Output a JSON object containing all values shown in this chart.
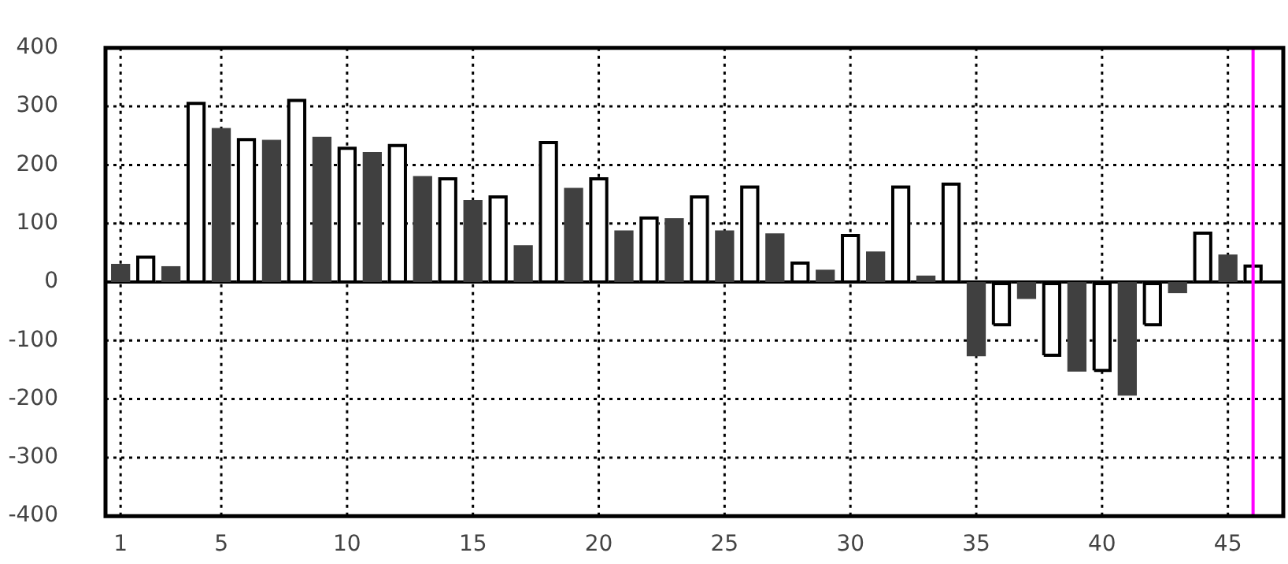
{
  "chart_data": {
    "type": "bar",
    "x": [
      1,
      2,
      3,
      4,
      5,
      6,
      7,
      8,
      9,
      10,
      11,
      12,
      13,
      14,
      15,
      16,
      17,
      18,
      19,
      20,
      21,
      22,
      23,
      24,
      25,
      26,
      27,
      28,
      29,
      30,
      31,
      32,
      33,
      34,
      35,
      36,
      37,
      38,
      39,
      40,
      41,
      42,
      43,
      44,
      45,
      46
    ],
    "values": [
      31,
      45,
      27,
      308,
      263,
      246,
      243,
      313,
      248,
      231,
      222,
      236,
      181,
      179,
      140,
      148,
      63,
      241,
      161,
      179,
      88,
      112,
      109,
      148,
      88,
      165,
      83,
      35,
      21,
      82,
      52,
      165,
      11,
      170,
      -127,
      -73,
      -29,
      -125,
      -153,
      -151,
      -194,
      -73,
      -19,
      86,
      47,
      30
    ],
    "colors": [
      "#404040",
      "#ffffff",
      "#404040",
      "#ffffff",
      "#404040",
      "#ffffff",
      "#404040",
      "#ffffff",
      "#404040",
      "#ffffff",
      "#404040",
      "#ffffff",
      "#404040",
      "#ffffff",
      "#404040",
      "#ffffff",
      "#404040",
      "#ffffff",
      "#404040",
      "#ffffff",
      "#404040",
      "#ffffff",
      "#404040",
      "#ffffff",
      "#404040",
      "#ffffff",
      "#404040",
      "#ffffff",
      "#404040",
      "#ffffff",
      "#404040",
      "#ffffff",
      "#404040",
      "#ffffff",
      "#404040",
      "#ffffff",
      "#404040",
      "#ffffff",
      "#404040",
      "#ffffff",
      "#404040",
      "#ffffff",
      "#404040",
      "#ffffff",
      "#404040",
      "#ffffff"
    ],
    "xlim": [
      0.4,
      47.2
    ],
    "xticks": [
      1,
      5,
      10,
      15,
      20,
      25,
      30,
      35,
      40,
      45
    ],
    "ylim": [
      -400,
      400
    ],
    "yticks": [
      -400,
      -300,
      -200,
      -100,
      0,
      100,
      200,
      300,
      400
    ],
    "grid": true,
    "legend": false,
    "ref_lines": [
      {
        "axis": "x",
        "value": 46,
        "color": "#ff00ff"
      }
    ]
  }
}
